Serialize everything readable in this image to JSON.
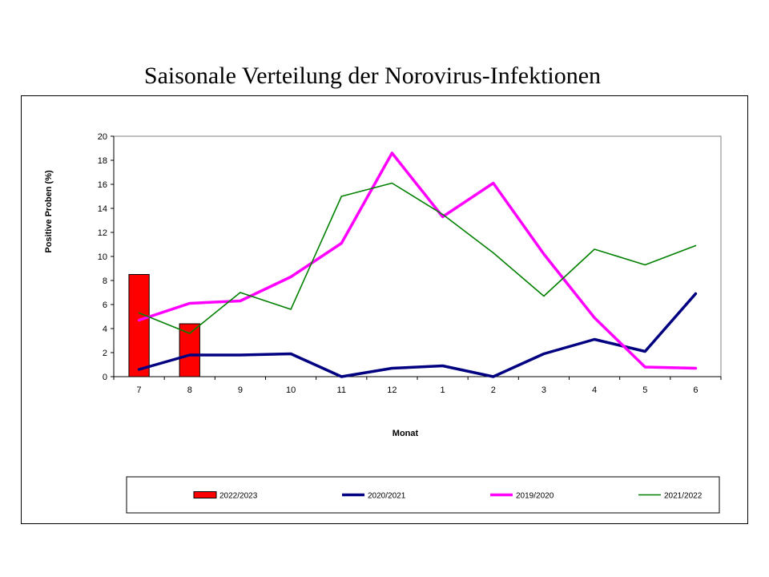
{
  "title": "Saisonale Verteilung der Norovirus-Infektionen",
  "chart_data": {
    "type": "bar",
    "title": "Saisonale Verteilung der Norovirus-Infektionen",
    "xlabel": "Monat",
    "ylabel": "Positive Proben (%)",
    "ylim": [
      0,
      20
    ],
    "yticks": [
      0,
      2,
      4,
      6,
      8,
      10,
      12,
      14,
      16,
      18,
      20
    ],
    "grid": false,
    "legend_position": "bottom",
    "categories": [
      "7",
      "8",
      "9",
      "10",
      "11",
      "12",
      "1",
      "2",
      "3",
      "4",
      "5",
      "6"
    ],
    "series": [
      {
        "name": "2022/2023",
        "type": "bar",
        "color": "#ff0000",
        "values": [
          8.5,
          4.4,
          null,
          null,
          null,
          null,
          null,
          null,
          null,
          null,
          null,
          null
        ]
      },
      {
        "name": "2020/2021",
        "type": "line",
        "color": "#000080",
        "values": [
          0.6,
          1.8,
          1.8,
          1.9,
          0.0,
          0.7,
          0.9,
          0.0,
          1.9,
          3.1,
          2.1,
          6.9
        ]
      },
      {
        "name": "2019/2020",
        "type": "line",
        "color": "#ff00ff",
        "values": [
          4.7,
          6.1,
          6.3,
          8.3,
          11.1,
          18.6,
          13.3,
          16.1,
          10.2,
          4.9,
          0.8,
          0.7
        ]
      },
      {
        "name": "2021/2022",
        "type": "line",
        "color": "#008000",
        "values": [
          5.3,
          3.6,
          7.0,
          5.6,
          15.0,
          16.1,
          13.5,
          10.3,
          6.7,
          10.6,
          9.3,
          10.9
        ]
      }
    ]
  }
}
